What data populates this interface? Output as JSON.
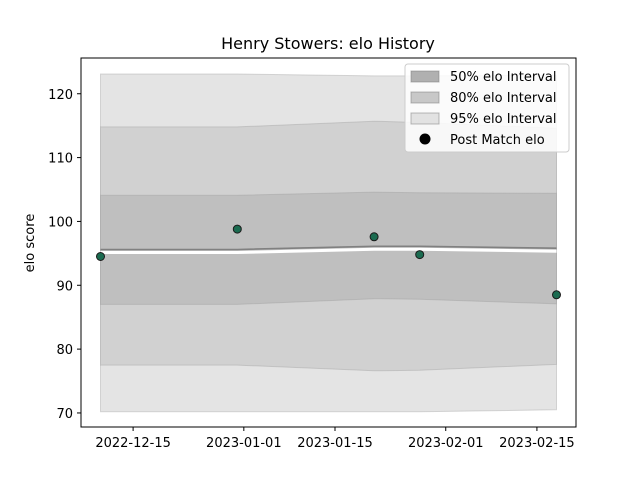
{
  "chart_data": {
    "type": "line",
    "title": "Henry Stowers: elo History",
    "xlabel": "",
    "ylabel": "elo score",
    "xlim": [
      "2022-12-07",
      "2023-02-21"
    ],
    "ylim": [
      67.8,
      125.6
    ],
    "x_ticks": [
      "2022-12-15",
      "2023-01-01",
      "2023-01-15",
      "2023-02-01",
      "2023-02-15"
    ],
    "y_ticks": [
      70,
      80,
      90,
      100,
      110,
      120
    ],
    "dates": [
      "2022-12-10",
      "2022-12-31",
      "2023-01-21",
      "2023-01-28",
      "2023-02-18"
    ],
    "mean": [
      95.6,
      95.6,
      96.1,
      96.1,
      95.8
    ],
    "bands": [
      {
        "name": "95% elo Interval",
        "color": "#e4e4e4",
        "lower": [
          70.2,
          70.2,
          70.2,
          70.2,
          70.5
        ],
        "upper": [
          123.1,
          123.1,
          122.8,
          122.8,
          122.9
        ]
      },
      {
        "name": "80% elo Interval",
        "color": "#d1d1d1",
        "lower": [
          77.5,
          77.5,
          76.6,
          76.7,
          77.6
        ],
        "upper": [
          114.8,
          114.8,
          115.7,
          115.5,
          114.6
        ]
      },
      {
        "name": "50% elo Interval",
        "color": "#bfbfbf",
        "lower": [
          87.0,
          87.0,
          87.9,
          87.8,
          87.1
        ],
        "upper": [
          104.1,
          104.1,
          104.6,
          104.5,
          104.4
        ]
      }
    ],
    "points": {
      "name": "Post Match elo",
      "color": "#1b6b50",
      "x": [
        "2022-12-10",
        "2022-12-31",
        "2023-01-21",
        "2023-01-28",
        "2023-02-18"
      ],
      "y": [
        94.5,
        98.8,
        97.6,
        94.8,
        88.5
      ]
    },
    "legend": {
      "placement": "top-right",
      "entries": [
        {
          "label": "50% elo Interval",
          "kind": "patch",
          "color": "#b0b0b0"
        },
        {
          "label": "80% elo Interval",
          "kind": "patch",
          "color": "#c8c8c8"
        },
        {
          "label": "95% elo Interval",
          "kind": "patch",
          "color": "#e2e2e2"
        },
        {
          "label": "Post Match elo",
          "kind": "marker",
          "color": "#000000"
        }
      ]
    }
  }
}
